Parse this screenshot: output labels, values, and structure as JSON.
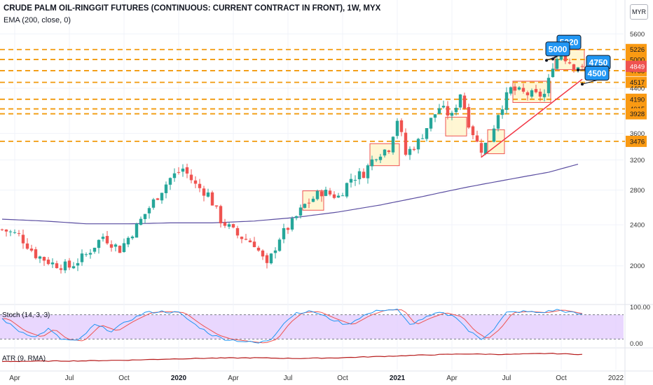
{
  "header": {
    "title": "CRUDE PALM OIL-RINGGIT FUTURES (CONTINUOUS: CURRENT CONTRACT IN FRONT), 1W, MYX",
    "indicator_main": "EMA (200, close, 0)",
    "currency": "MYR",
    "indicator_stoch": "Stoch (14, 3, 3)",
    "indicator_atr": "ATR (9, RMA)"
  },
  "chart_data": {
    "type": "candlestick",
    "title": "CRUDE PALM OIL-RINGGIT FUTURES (CONTINUOUS: CURRENT CONTRACT IN FRONT), 1W, MYX",
    "x_ticks": [
      {
        "label": "Apr",
        "t": 3,
        "bold": false
      },
      {
        "label": "Jul",
        "t": 16,
        "bold": false
      },
      {
        "label": "Oct",
        "t": 29,
        "bold": false
      },
      {
        "label": "2020",
        "t": 42,
        "bold": true
      },
      {
        "label": "Apr",
        "t": 55,
        "bold": false
      },
      {
        "label": "Jul",
        "t": 68,
        "bold": false
      },
      {
        "label": "Oct",
        "t": 81,
        "bold": false
      },
      {
        "label": "2021",
        "t": 94,
        "bold": true
      },
      {
        "label": "Apr",
        "t": 107,
        "bold": false
      },
      {
        "label": "Jul",
        "t": 120,
        "bold": false
      },
      {
        "label": "Oct",
        "t": 133,
        "bold": false
      },
      {
        "label": "2022",
        "t": 146,
        "bold": false
      }
    ],
    "y_ticks": [
      2000,
      2400,
      2800,
      3200,
      3600,
      4400,
      5600
    ],
    "ylim": [
      1700,
      5750
    ],
    "last_price": 4849,
    "close_anchors": [
      [
        0,
        2350
      ],
      [
        4,
        2290
      ],
      [
        8,
        2100
      ],
      [
        12,
        2020
      ],
      [
        16,
        1990
      ],
      [
        20,
        2100
      ],
      [
        24,
        2280
      ],
      [
        28,
        2150
      ],
      [
        32,
        2380
      ],
      [
        36,
        2660
      ],
      [
        40,
        2950
      ],
      [
        43,
        3080
      ],
      [
        46,
        2860
      ],
      [
        49,
        2750
      ],
      [
        52,
        2450
      ],
      [
        56,
        2290
      ],
      [
        60,
        2210
      ],
      [
        63,
        1990
      ],
      [
        66,
        2270
      ],
      [
        69,
        2420
      ],
      [
        72,
        2620
      ],
      [
        76,
        2780
      ],
      [
        80,
        2720
      ],
      [
        83,
        2950
      ],
      [
        86,
        3020
      ],
      [
        89,
        3280
      ],
      [
        92,
        3380
      ],
      [
        94,
        3840
      ],
      [
        96,
        3280
      ],
      [
        99,
        3470
      ],
      [
        102,
        3820
      ],
      [
        104,
        4040
      ],
      [
        107,
        3880
      ],
      [
        109,
        4310
      ],
      [
        111,
        3780
      ],
      [
        113,
        3450
      ],
      [
        114,
        3360
      ],
      [
        116,
        3500
      ],
      [
        118,
        3950
      ],
      [
        121,
        4380
      ],
      [
        124,
        4300
      ],
      [
        127,
        4260
      ],
      [
        129,
        4280
      ],
      [
        130,
        4540
      ],
      [
        131,
        4900
      ],
      [
        133,
        5130
      ],
      [
        135,
        4950
      ],
      [
        136,
        4880
      ],
      [
        138,
        4849
      ]
    ],
    "ema200": [
      [
        0,
        2460
      ],
      [
        10,
        2440
      ],
      [
        20,
        2410
      ],
      [
        30,
        2410
      ],
      [
        40,
        2420
      ],
      [
        50,
        2420
      ],
      [
        60,
        2440
      ],
      [
        70,
        2480
      ],
      [
        80,
        2540
      ],
      [
        90,
        2620
      ],
      [
        100,
        2720
      ],
      [
        110,
        2830
      ],
      [
        120,
        2930
      ],
      [
        130,
        3030
      ],
      [
        137,
        3140
      ]
    ],
    "levels": [
      5226,
      5000,
      4758,
      4517,
      4190,
      4015,
      3928,
      3476
    ],
    "callouts": [
      {
        "label": "5220",
        "price": 5400
      },
      {
        "label": "5000",
        "price": 5240
      },
      {
        "label": "4750",
        "price": 4935
      },
      {
        "label": "4500",
        "price": 4705
      }
    ],
    "stoch": {
      "ylim": [
        0,
        100
      ],
      "upper": 80,
      "lower": 20,
      "tick_labels": [
        "100.00",
        "0.00"
      ],
      "k_anchors": [
        [
          0,
          70
        ],
        [
          4,
          40
        ],
        [
          8,
          25
        ],
        [
          11,
          45
        ],
        [
          14,
          20
        ],
        [
          18,
          15
        ],
        [
          22,
          55
        ],
        [
          26,
          40
        ],
        [
          30,
          65
        ],
        [
          34,
          85
        ],
        [
          38,
          88
        ],
        [
          42,
          85
        ],
        [
          46,
          55
        ],
        [
          50,
          30
        ],
        [
          53,
          20
        ],
        [
          57,
          15
        ],
        [
          61,
          10
        ],
        [
          64,
          20
        ],
        [
          67,
          60
        ],
        [
          70,
          85
        ],
        [
          74,
          88
        ],
        [
          78,
          70
        ],
        [
          82,
          55
        ],
        [
          86,
          78
        ],
        [
          90,
          92
        ],
        [
          94,
          92
        ],
        [
          97,
          55
        ],
        [
          100,
          70
        ],
        [
          104,
          85
        ],
        [
          108,
          75
        ],
        [
          111,
          40
        ],
        [
          114,
          20
        ],
        [
          117,
          45
        ],
        [
          120,
          85
        ],
        [
          124,
          88
        ],
        [
          128,
          85
        ],
        [
          132,
          92
        ],
        [
          136,
          84
        ],
        [
          138,
          80
        ]
      ]
    },
    "atr": {
      "anchors": [
        [
          0,
          40
        ],
        [
          10,
          42
        ],
        [
          20,
          44
        ],
        [
          30,
          48
        ],
        [
          40,
          55
        ],
        [
          50,
          60
        ],
        [
          60,
          62
        ],
        [
          70,
          58
        ],
        [
          80,
          62
        ],
        [
          90,
          70
        ],
        [
          100,
          78
        ],
        [
          110,
          85
        ],
        [
          120,
          82
        ],
        [
          130,
          88
        ],
        [
          138,
          82
        ]
      ]
    }
  },
  "colors": {
    "up": "#26a69a",
    "down": "#ef5350",
    "ema": "#5b4ea1",
    "level": "#f29a0c",
    "level_box": "#fa9a13",
    "trendline": "#f23645",
    "callout": "#2196f3",
    "stoch_k": "#2196f3",
    "stoch_d": "#ef5350",
    "stoch_band": "#e1c9fd",
    "atr": "#b71c1c",
    "price_badge": "#ef5350"
  }
}
